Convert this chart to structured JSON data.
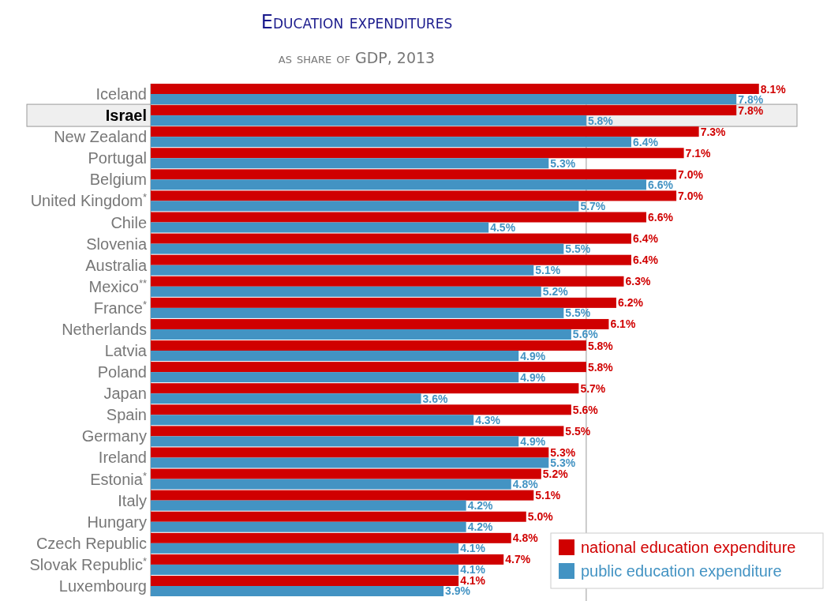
{
  "chart_data": {
    "type": "bar",
    "orientation": "horizontal",
    "title": "Education expenditures",
    "subtitle": "as share of GDP, 2013",
    "categories": [
      "Iceland",
      "Israel",
      "New Zealand",
      "Portugal",
      "Belgium",
      "United Kingdom$^{*}$",
      "Chile",
      "Slovenia",
      "Australia",
      "Mexico$^{**}$",
      "France$^{*}$",
      "Netherlands",
      "Latvia",
      "Poland",
      "Japan",
      "Spain",
      "Germany",
      "Ireland",
      "Estonia$^{*}$",
      "Italy",
      "Hungary",
      "Czech Republic",
      "Slovak Republic$^{*}$",
      "Luxembourg"
    ],
    "series": [
      {
        "name": "national education expenditure",
        "color": "#d00000",
        "values": [
          8.1,
          7.8,
          7.3,
          7.1,
          7.0,
          7.0,
          6.6,
          6.4,
          6.4,
          6.3,
          6.2,
          6.1,
          5.8,
          5.8,
          5.7,
          5.6,
          5.5,
          5.3,
          5.2,
          5.1,
          5.0,
          4.8,
          4.7,
          4.1
        ],
        "value_labels": [
          "8.1%",
          "7.8%",
          "7.3%",
          "7.1%",
          "7.0%",
          "7.0%",
          "6.6%",
          "6.4%",
          "6.4%",
          "6.3%",
          "6.2%",
          "6.1%",
          "5.8%",
          "5.8%",
          "5.7%",
          "5.6%",
          "5.5%",
          "5.3%",
          "5.2%",
          "5.1%",
          "5.0%",
          "4.8%",
          "4.7%",
          "4.1%"
        ]
      },
      {
        "name": "public education expenditure",
        "color": "#4393c3",
        "values": [
          7.8,
          5.8,
          6.4,
          5.3,
          6.6,
          5.7,
          4.5,
          5.5,
          5.1,
          5.2,
          5.5,
          5.6,
          4.9,
          4.9,
          3.6,
          4.3,
          4.9,
          5.3,
          4.8,
          4.2,
          4.2,
          4.1,
          4.1,
          3.9
        ],
        "value_labels": [
          "7.8%",
          "5.8%",
          "6.4%",
          "5.3%",
          "6.6%",
          "5.7%",
          "4.5%",
          "5.5%",
          "5.1%",
          "5.2%",
          "5.5%",
          "5.6%",
          "4.9%",
          "4.9%",
          "3.6%",
          "4.3%",
          "4.9%",
          "5.3%",
          "4.8%",
          "4.2%",
          "4.2%",
          "4.1%",
          "4.1%",
          "3.9%"
        ]
      }
    ],
    "tick_labels": "y",
    "legend": "bottom right",
    "ref_lines": [
      {
        "axis": "x",
        "value": 5.8,
        "color": "#999999"
      }
    ],
    "bands": [
      {
        "axis": "y",
        "from": "Israel",
        "to": "Israel",
        "color": "#efefef"
      }
    ]
  }
}
